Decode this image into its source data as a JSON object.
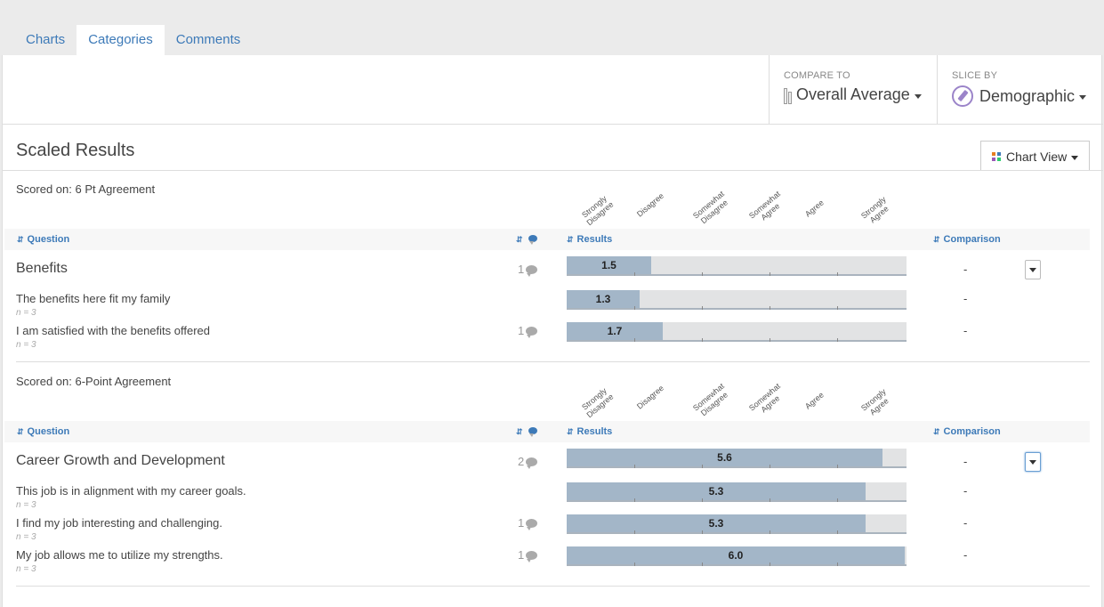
{
  "tabs": [
    {
      "label": "Charts",
      "active": false
    },
    {
      "label": "Categories",
      "active": true
    },
    {
      "label": "Comments",
      "active": false
    }
  ],
  "toolbar": {
    "compare_label": "COMPARE TO",
    "compare_value": "Overall Average",
    "slice_label": "SLICE BY",
    "slice_value": "Demographic"
  },
  "section": {
    "title": "Scaled Results",
    "chart_view_label": "Chart View"
  },
  "headers": {
    "question": "Question",
    "results": "Results",
    "comparison": "Comparison"
  },
  "scale_labels": [
    "Strongly\nDisagree",
    "Disagree",
    "Somewhat\nDisagree",
    "Somewhat\nAgree",
    "Agree",
    "Strongly\nAgree"
  ],
  "scale": {
    "min": 1,
    "max": 6
  },
  "groups": [
    {
      "scored_on": "Scored on: 6 Pt Agreement",
      "category": {
        "title": "Benefits",
        "comments": "1",
        "value": 1.5,
        "value_label": "1.5",
        "comparison": "-"
      },
      "questions": [
        {
          "text": "The benefits here fit my family",
          "n": "n = 3",
          "comments": "",
          "value": 1.3,
          "value_label": "1.3",
          "comparison": "-"
        },
        {
          "text": "I am satisfied with the benefits offered",
          "n": "n = 3",
          "comments": "1",
          "value": 1.7,
          "value_label": "1.7",
          "comparison": "-"
        }
      ]
    },
    {
      "scored_on": "Scored on: 6-Point Agreement",
      "category": {
        "title": "Career Growth and Development",
        "comments": "2",
        "value": 5.6,
        "value_label": "5.6",
        "comparison": "-"
      },
      "questions": [
        {
          "text": "This job is in alignment with my career goals.",
          "n": "n = 3",
          "comments": "",
          "value": 5.3,
          "value_label": "5.3",
          "comparison": "-"
        },
        {
          "text": "I find my job interesting and challenging.",
          "n": "n = 3",
          "comments": "1",
          "value": 5.3,
          "value_label": "5.3",
          "comparison": "-"
        },
        {
          "text": "My job allows me to utilize my strengths.",
          "n": "n = 3",
          "comments": "1",
          "value": 6.0,
          "value_label": "6.0",
          "comparison": "-"
        }
      ]
    }
  ]
}
